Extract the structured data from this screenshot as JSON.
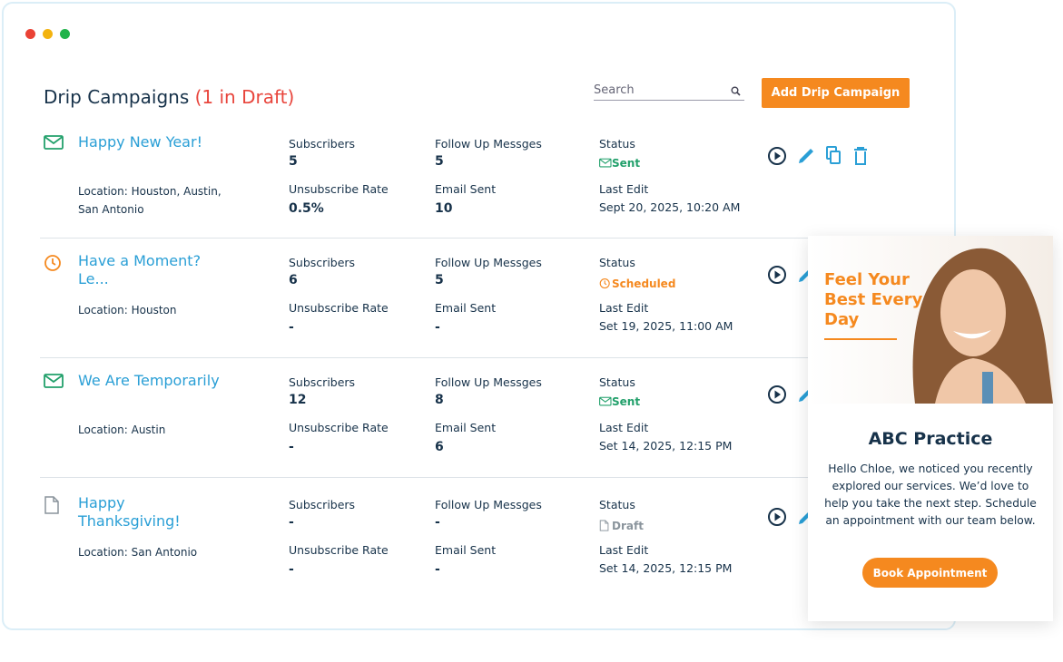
{
  "header": {
    "title": "Drip Campaigns",
    "draft_note": "(1 in Draft)",
    "search_placeholder": "Search",
    "add_button": "Add Drip Campaign"
  },
  "labels": {
    "subscribers": "Subscribers",
    "follow_up": "Follow Up Messges",
    "status": "Status",
    "unsubscribe_rate": "Unsubscribe Rate",
    "email_sent": "Email Sent",
    "last_edit": "Last Edit"
  },
  "campaigns": [
    {
      "name": "Happy New Year!",
      "location": "Location: Houston, Austin, San Antonio",
      "subscribers": 5,
      "follow_up": 5,
      "status": "Sent",
      "unsubscribe_rate": "0.5%",
      "email_sent": 10,
      "last_edit": "Sept 20, 2025, 10:20 AM"
    },
    {
      "name": "Have a Moment? Le...",
      "location": "Location: Houston",
      "subscribers": 6,
      "follow_up": 5,
      "status": "Scheduled",
      "unsubscribe_rate": "-",
      "email_sent": "-",
      "last_edit": "Set 19, 2025, 11:00 AM"
    },
    {
      "name": "We Are Temporarily",
      "location": "Location: Austin",
      "subscribers": 12,
      "follow_up": 8,
      "status": "Sent",
      "unsubscribe_rate": "-",
      "email_sent": 6,
      "last_edit": "Set 14, 2025, 12:15 PM"
    },
    {
      "name": "Happy Thanksgiving!",
      "location": "Location: San Antonio",
      "subscribers": "-",
      "follow_up": "-",
      "status": "Draft",
      "unsubscribe_rate": "-",
      "email_sent": "-",
      "last_edit": "Set 14, 2025, 12:15 PM"
    }
  ],
  "promo": {
    "headline": "Feel Your Best Every Day",
    "practice": "ABC Practice",
    "message": "Hello Chloe, we noticed you recently explored our services. We’d love to help you take the next step. Schedule an appointment with our team below.",
    "button": "Book Appointment"
  }
}
